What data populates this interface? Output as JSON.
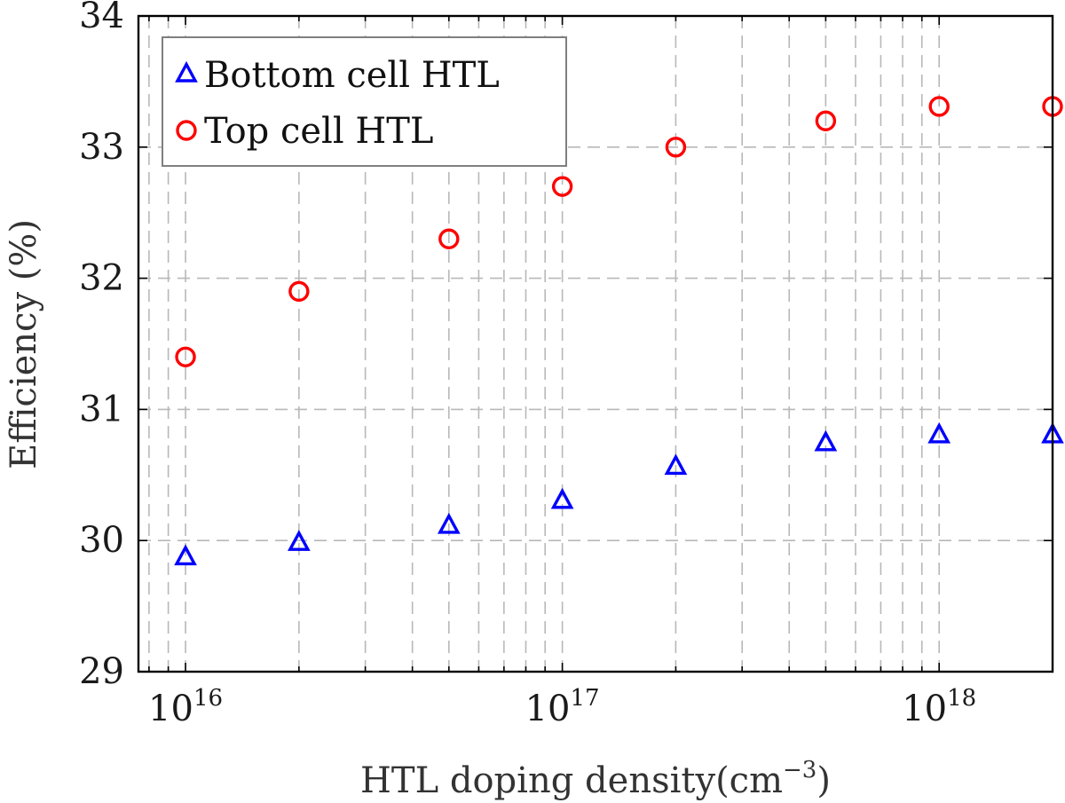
{
  "chart_data": {
    "type": "scatter",
    "title": "",
    "xlabel": "HTL doping density(cm",
    "xlabel_exponent": "−3",
    "xlabel_close": ")",
    "ylabel": "Efficiency (%)",
    "xscale": "log",
    "xlim": [
      7500000000000000.0,
      2e+18
    ],
    "ylim": [
      29,
      34
    ],
    "grid": true,
    "legend_position": "top-left",
    "x_ticks": [
      {
        "value": 1e+16,
        "base": "10",
        "exp": "16"
      },
      {
        "value": 1e+17,
        "base": "10",
        "exp": "17"
      },
      {
        "value": 1e+18,
        "base": "10",
        "exp": "18"
      }
    ],
    "y_ticks": [
      {
        "value": 29,
        "label": "29"
      },
      {
        "value": 30,
        "label": "30"
      },
      {
        "value": 31,
        "label": "31"
      },
      {
        "value": 32,
        "label": "32"
      },
      {
        "value": 33,
        "label": "33"
      },
      {
        "value": 34,
        "label": "34"
      }
    ],
    "x": [
      1e+16,
      2e+16,
      5e+16,
      1e+17,
      2e+17,
      5e+17,
      1e+18,
      2e+18
    ],
    "series": [
      {
        "name": "Bottom cell HTL",
        "marker": "triangle",
        "color": "#0000ff",
        "values": [
          29.87,
          29.98,
          30.11,
          30.3,
          30.56,
          30.74,
          30.8,
          30.8
        ]
      },
      {
        "name": "Top cell HTL",
        "marker": "circle",
        "color": "#ff0000",
        "values": [
          31.4,
          31.9,
          32.3,
          32.7,
          33.0,
          33.2,
          33.31,
          33.31
        ]
      }
    ]
  }
}
